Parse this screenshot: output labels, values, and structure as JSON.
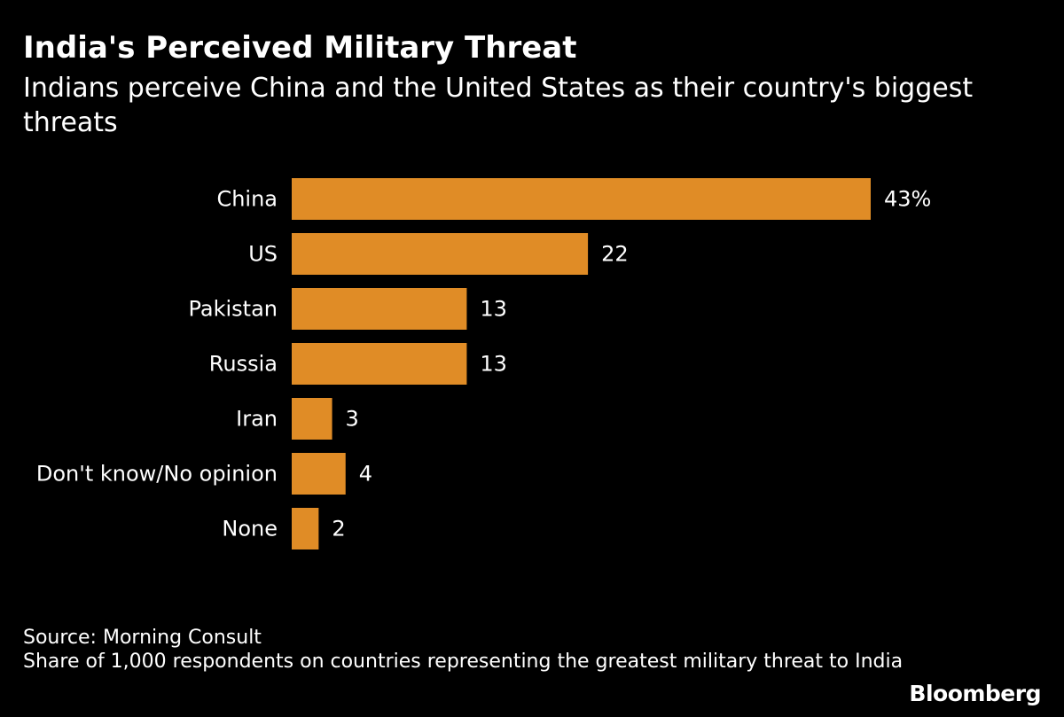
{
  "header": {
    "title": "India's Perceived Military Threat",
    "subtitle": "Indians perceive China and the United States as their country's biggest threats"
  },
  "chart_data": {
    "type": "bar",
    "orientation": "horizontal",
    "title": "India's Perceived Military Threat",
    "subtitle": "Indians perceive China and the United States as their country's biggest threats",
    "categories": [
      "China",
      "US",
      "Pakistan",
      "Russia",
      "Iran",
      "Don't know/No opinion",
      "None"
    ],
    "values": [
      43,
      22,
      13,
      13,
      3,
      4,
      2
    ],
    "value_labels": [
      "43%",
      "22",
      "13",
      "13",
      "3",
      "4",
      "2"
    ],
    "unit": "%",
    "xlabel": "",
    "ylabel": "",
    "xlim": [
      0,
      43
    ],
    "grid": false,
    "legend": "none",
    "bar_color": "#e08c26"
  },
  "footer": {
    "source": "Source: Morning Consult",
    "note": "Share of 1,000 respondents on countries representing the greatest military threat to India"
  },
  "brand": {
    "name": "Bloomberg"
  },
  "colors": {
    "background": "#000000",
    "text": "#ffffff",
    "bar": "#e08c26"
  }
}
